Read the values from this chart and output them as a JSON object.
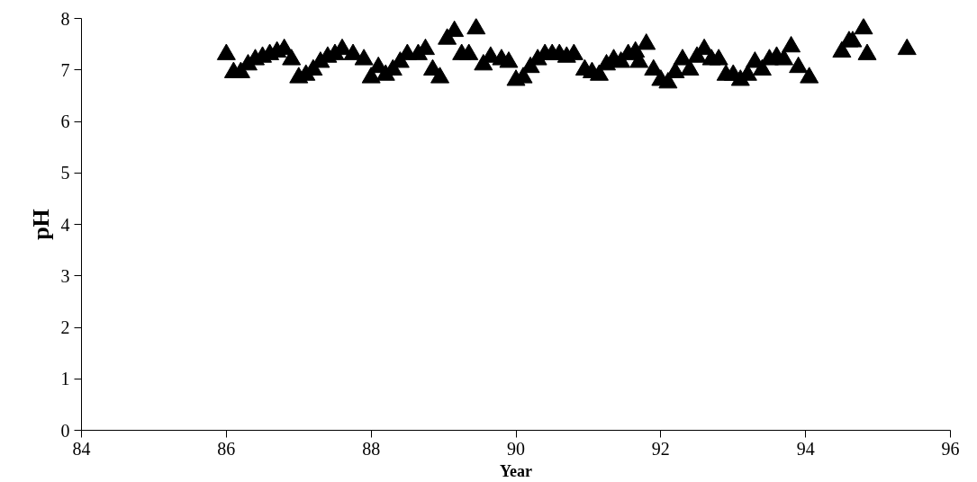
{
  "chart_data": {
    "type": "scatter",
    "xlabel": "Year",
    "ylabel": "pH",
    "marker": "triangle",
    "xlim": [
      84,
      96
    ],
    "xticks": [
      84,
      86,
      88,
      90,
      92,
      94,
      96
    ],
    "ylim": [
      0,
      8
    ],
    "yticks": [
      0,
      1,
      2,
      3,
      4,
      5,
      6,
      7,
      8
    ],
    "series": [
      {
        "color": "#000000",
        "x": [
          86.0,
          86.1,
          86.2,
          86.3,
          86.4,
          86.5,
          86.6,
          86.7,
          86.8,
          86.9,
          87.0,
          87.1,
          87.2,
          87.3,
          87.4,
          87.5,
          87.6,
          87.75,
          87.9,
          88.0,
          88.1,
          88.2,
          88.3,
          88.4,
          88.5,
          88.65,
          88.75,
          88.85,
          88.95,
          89.05,
          89.15,
          89.25,
          89.35,
          89.45,
          89.55,
          89.65,
          89.8,
          89.9,
          90.0,
          90.1,
          90.2,
          90.3,
          90.4,
          90.5,
          90.6,
          90.7,
          90.8,
          90.95,
          91.05,
          91.15,
          91.25,
          91.35,
          91.45,
          91.55,
          91.65,
          91.7,
          91.8,
          91.9,
          92.0,
          92.1,
          92.2,
          92.3,
          92.4,
          92.5,
          92.6,
          92.7,
          92.8,
          92.9,
          93.0,
          93.1,
          93.2,
          93.3,
          93.4,
          93.5,
          93.6,
          93.7,
          93.8,
          93.9,
          94.05,
          94.5,
          94.6,
          94.65,
          94.8,
          94.85,
          95.4
        ],
        "values": [
          7.3,
          6.95,
          6.95,
          7.1,
          7.2,
          7.25,
          7.3,
          7.35,
          7.4,
          7.2,
          6.85,
          6.9,
          7.0,
          7.15,
          7.25,
          7.3,
          7.4,
          7.3,
          7.2,
          6.85,
          7.05,
          6.9,
          7.0,
          7.15,
          7.3,
          7.3,
          7.4,
          7.0,
          6.85,
          7.6,
          7.75,
          7.3,
          7.3,
          7.8,
          7.1,
          7.25,
          7.2,
          7.15,
          6.8,
          6.85,
          7.05,
          7.2,
          7.3,
          7.3,
          7.3,
          7.25,
          7.3,
          7.0,
          6.95,
          6.9,
          7.1,
          7.2,
          7.15,
          7.3,
          7.35,
          7.15,
          7.5,
          7.0,
          6.8,
          6.75,
          6.95,
          7.2,
          7.0,
          7.25,
          7.4,
          7.2,
          7.2,
          6.9,
          6.9,
          6.8,
          6.9,
          7.15,
          7.0,
          7.2,
          7.25,
          7.2,
          7.45,
          7.05,
          6.85,
          7.35,
          7.55,
          7.55,
          7.8,
          7.3,
          7.4
        ]
      }
    ]
  }
}
